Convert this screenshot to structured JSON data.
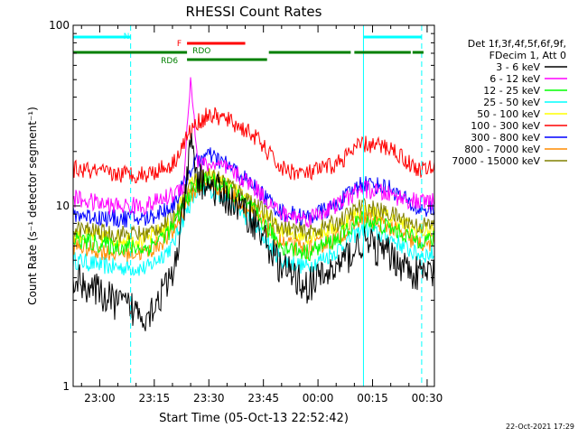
{
  "chart_data": {
    "type": "line",
    "title": "RHESSI Count Rates",
    "xlabel": "Start Time (05-Oct-13 22:52:42)",
    "ylabel": "Count Rate (s⁻¹ detector segment⁻¹)",
    "y_scale": "log",
    "ylim": [
      1,
      100
    ],
    "xlim": [
      "22:52:42",
      "00:32:00"
    ],
    "grid": false,
    "x_ticks": [
      "23:00",
      "23:15",
      "23:30",
      "23:45",
      "00:00",
      "00:15",
      "00:30"
    ],
    "y_ticks": [
      "1",
      "10",
      "100"
    ],
    "legend": {
      "placement": "right",
      "header": [
        "Det 1f,3f,4f,5f,6f,9f,",
        "FDecim 1, Att 0"
      ]
    },
    "series": [
      {
        "name": "3 - 6 keV",
        "color": "#000000",
        "x": [
          "22:53",
          "23:03",
          "23:13",
          "23:20",
          "23:23",
          "23:25",
          "23:27",
          "23:30",
          "23:35",
          "23:42",
          "23:50",
          "23:57",
          "00:05",
          "00:12",
          "00:20",
          "00:27"
        ],
        "y": [
          4.0,
          3.0,
          2.5,
          4.0,
          9.0,
          22.0,
          14.0,
          13.0,
          11.0,
          8.5,
          4.5,
          3.6,
          4.5,
          6.3,
          5.3,
          4.2
        ]
      },
      {
        "name": "6 - 12 keV",
        "color": "#ff00ff",
        "x": [
          "22:53",
          "23:03",
          "23:13",
          "23:20",
          "23:23",
          "23:25",
          "23:27",
          "23:30",
          "23:35",
          "23:42",
          "23:50",
          "23:57",
          "00:05",
          "00:12",
          "00:20",
          "00:27"
        ],
        "y": [
          11.0,
          10.0,
          10.0,
          11.5,
          13.0,
          52.0,
          17.0,
          17.0,
          16.0,
          13.0,
          9.0,
          8.5,
          10.0,
          12.5,
          11.5,
          10.5
        ]
      },
      {
        "name": "12 - 25 keV",
        "color": "#00ff00",
        "x": [
          "22:53",
          "23:03",
          "23:13",
          "23:20",
          "23:23",
          "23:25",
          "23:27",
          "23:30",
          "23:35",
          "23:42",
          "23:50",
          "23:57",
          "00:05",
          "00:12",
          "00:20",
          "00:27"
        ],
        "y": [
          6.5,
          6.0,
          5.8,
          7.5,
          10.0,
          12.0,
          13.0,
          14.0,
          12.5,
          9.5,
          6.0,
          5.5,
          6.5,
          8.5,
          7.5,
          6.5
        ]
      },
      {
        "name": "25 - 50 keV",
        "color": "#00ffff",
        "x": [
          "22:53",
          "23:03",
          "23:13",
          "23:20",
          "23:23",
          "23:25",
          "23:27",
          "23:30",
          "23:35",
          "23:42",
          "23:50",
          "23:57",
          "00:05",
          "00:12",
          "00:20",
          "00:27"
        ],
        "y": [
          5.0,
          4.6,
          4.5,
          6.0,
          8.5,
          10.5,
          12.0,
          12.5,
          11.0,
          8.0,
          5.0,
          4.6,
          5.6,
          7.5,
          6.6,
          5.4
        ]
      },
      {
        "name": "50 - 100 keV",
        "color": "#ffff00",
        "x": [
          "22:53",
          "23:03",
          "23:13",
          "23:20",
          "23:23",
          "23:25",
          "23:27",
          "23:30",
          "23:35",
          "23:42",
          "23:50",
          "23:57",
          "00:05",
          "00:12",
          "00:20",
          "00:27"
        ],
        "y": [
          7.0,
          6.6,
          6.5,
          8.0,
          11.0,
          13.0,
          14.0,
          14.5,
          13.0,
          10.0,
          7.2,
          6.8,
          7.6,
          9.5,
          8.5,
          7.3
        ]
      },
      {
        "name": "100 - 300 keV",
        "color": "#ff0000",
        "x": [
          "22:53",
          "23:03",
          "23:13",
          "23:20",
          "23:23",
          "23:25",
          "23:27",
          "23:30",
          "23:35",
          "23:42",
          "23:50",
          "23:57",
          "00:05",
          "00:12",
          "00:20",
          "00:27"
        ],
        "y": [
          16.0,
          15.0,
          15.0,
          17.0,
          22.0,
          26.0,
          29.0,
          32.0,
          30.0,
          25.0,
          16.0,
          15.0,
          17.0,
          22.0,
          21.0,
          16.0
        ]
      },
      {
        "name": "300 - 800 keV",
        "color": "#0000ff",
        "x": [
          "22:53",
          "23:03",
          "23:13",
          "23:20",
          "23:23",
          "23:25",
          "23:27",
          "23:30",
          "23:35",
          "23:42",
          "23:50",
          "23:57",
          "00:05",
          "00:12",
          "00:20",
          "00:27"
        ],
        "y": [
          9.0,
          8.5,
          8.5,
          10.0,
          13.0,
          16.0,
          18.0,
          19.0,
          17.0,
          13.0,
          9.2,
          8.6,
          10.0,
          13.5,
          12.5,
          9.6
        ]
      },
      {
        "name": "800 - 7000 keV",
        "color": "#ff8c00",
        "x": [
          "22:53",
          "23:03",
          "23:13",
          "23:20",
          "23:23",
          "23:25",
          "23:27",
          "23:30",
          "23:35",
          "23:42",
          "23:50",
          "23:57",
          "00:05",
          "00:12",
          "00:20",
          "00:27"
        ],
        "y": [
          6.0,
          5.5,
          5.5,
          7.0,
          9.5,
          11.5,
          12.5,
          13.5,
          12.0,
          9.0,
          6.2,
          5.7,
          6.6,
          8.6,
          7.6,
          6.2
        ]
      },
      {
        "name": "7000 - 15000 keV",
        "color": "#808000",
        "x": [
          "22:53",
          "23:03",
          "23:13",
          "23:20",
          "23:23",
          "23:25",
          "23:27",
          "23:30",
          "23:35",
          "23:42",
          "23:50",
          "23:57",
          "00:05",
          "00:12",
          "00:20",
          "00:27"
        ],
        "y": [
          7.5,
          7.0,
          7.0,
          8.5,
          11.0,
          13.0,
          14.0,
          15.0,
          13.5,
          10.5,
          7.6,
          7.1,
          8.0,
          10.0,
          9.0,
          7.8
        ]
      }
    ],
    "annotations": {
      "night_segments": [
        {
          "label": "N",
          "color": "#00ffff",
          "x0": "22:52:42",
          "x1": "23:08:30"
        },
        {
          "label": "",
          "color": "#00ffff",
          "x0": "00:12:30",
          "x1": "00:28:30"
        }
      ],
      "flare_segments": [
        {
          "label": "F",
          "color": "#ff0000",
          "x0": "23:24:00",
          "x1": "23:40:00"
        }
      ],
      "saa_segments": [
        {
          "label": "",
          "color": "#008000",
          "x0": "22:52:42",
          "x1": "23:24:00"
        },
        {
          "label": "RD6",
          "color": "#008000",
          "x0": "23:24:00",
          "x1": "23:46:00"
        },
        {
          "label": "",
          "color": "#008000",
          "x0": "23:46:30",
          "x1": "00:09:00"
        },
        {
          "label": "",
          "color": "#008000",
          "x0": "00:10:00",
          "x1": "00:25:30"
        },
        {
          "label": "",
          "color": "#008000",
          "x0": "00:26:00",
          "x1": "00:29:00"
        }
      ],
      "rdo_label": {
        "text": "RDO",
        "color": "#008000",
        "x": "23:25:30"
      },
      "vertical_lines": [
        {
          "x": "22:52:42",
          "color": "#00ffff",
          "style": "solid"
        },
        {
          "x": "23:08:30",
          "color": "#00ffff",
          "style": "dashed"
        },
        {
          "x": "00:12:30",
          "color": "#00ffff",
          "style": "solid"
        },
        {
          "x": "00:28:30",
          "color": "#00ffff",
          "style": "dashed"
        }
      ]
    },
    "footer_timestamp": "22-Oct-2021 17:29"
  }
}
